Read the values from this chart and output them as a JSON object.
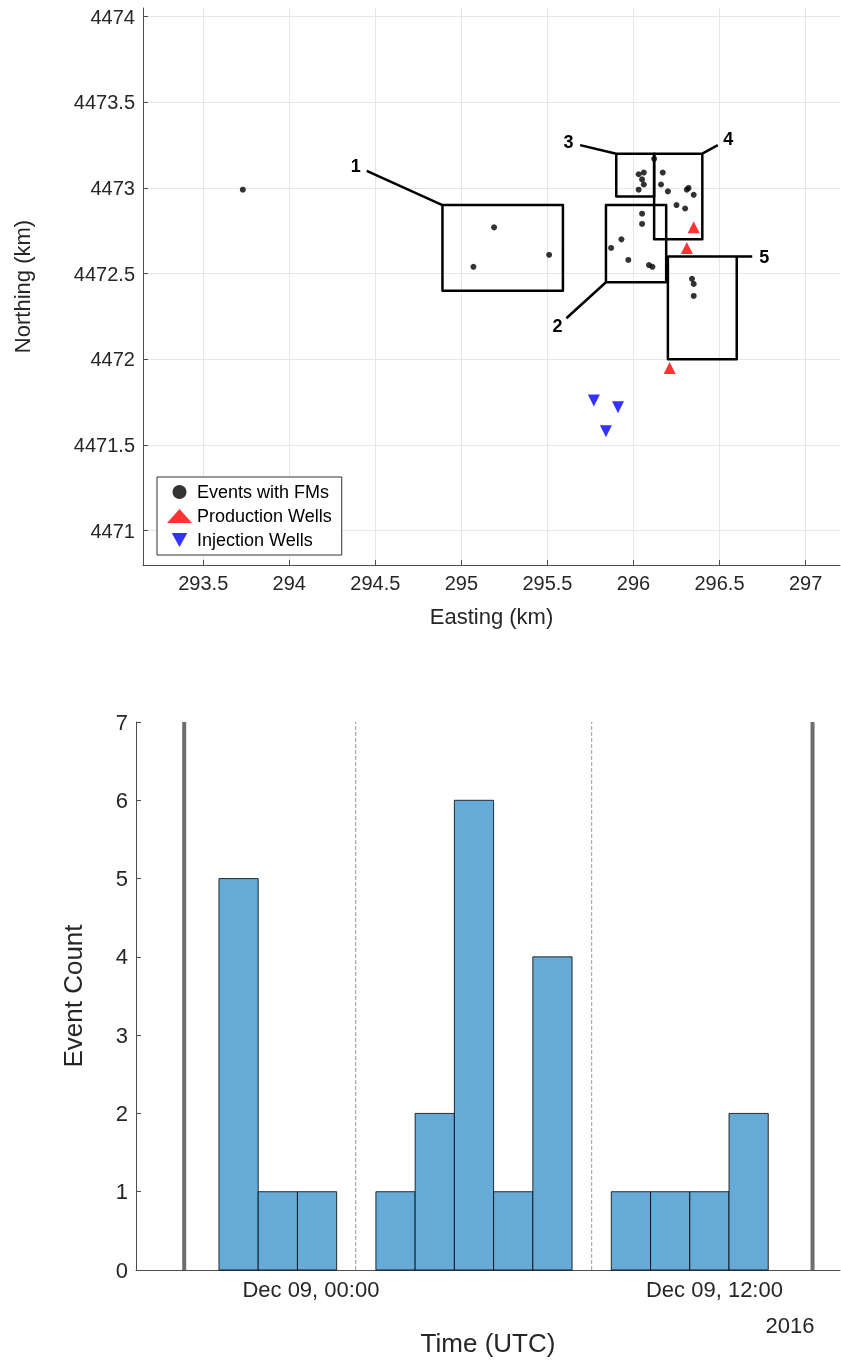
{
  "chart_data": [
    {
      "type": "scatter",
      "xlabel": "Easting (km)",
      "ylabel": "Northing (km)",
      "xlim": [
        293.15,
        297.2
      ],
      "xticks": [
        293.5,
        294,
        294.5,
        295,
        295.5,
        296,
        296.5,
        297
      ],
      "ylim": [
        4470.8,
        4474.05
      ],
      "yticks": [
        4471,
        4471.5,
        4472,
        4472.5,
        4473,
        4473.5,
        4474
      ],
      "grid": true,
      "legend": "bottom left",
      "series": [
        {
          "name": "Events with FMs",
          "color": "#000000",
          "marker": "circle",
          "x": [
            293.73,
            295.07,
            295.19,
            295.51,
            296.12,
            296.17,
            296.16,
            296.2,
            296.31,
            296.32,
            296.35,
            296.25,
            296.3,
            296.03,
            296.06,
            296.05,
            296.06,
            296.03,
            296.05,
            296.05,
            295.93,
            295.87,
            295.97,
            296.09,
            296.11,
            296.34,
            296.35,
            296.35
          ],
          "values": [
            4472.99,
            4472.54,
            4472.77,
            4472.61,
            4473.17,
            4473.09,
            4473.02,
            4472.98,
            4472.99,
            4473.0,
            4472.96,
            4472.9,
            4472.88,
            4473.08,
            4473.09,
            4473.05,
            4473.02,
            4472.99,
            4472.85,
            4472.79,
            4472.7,
            4472.65,
            4472.58,
            4472.55,
            4472.54,
            4472.47,
            4472.44,
            4472.37
          ]
        },
        {
          "name": "Production Wells",
          "color": "#ff0000",
          "marker": "triangle",
          "x": [
            296.35,
            296.31,
            296.21
          ],
          "values": [
            4472.77,
            4472.65,
            4471.95
          ]
        },
        {
          "name": "Injection Wells",
          "color": "#0000ff",
          "marker": "triangle_down",
          "x": [
            295.77,
            295.91,
            295.84
          ],
          "values": [
            4471.76,
            4471.72,
            4471.58
          ]
        },
        {
          "type": "line",
          "color": "#000000",
          "marker": "none",
          "x": [
            294.45,
            294.89,
            295.59,
            295.59,
            294.89,
            294.89
          ],
          "values": [
            4473.1,
            4472.9,
            4472.9,
            4472.4,
            4472.4,
            4472.9
          ]
        },
        {
          "type": "line",
          "color": "#000000",
          "marker": "none",
          "x": [
            295.61,
            295.84,
            295.84,
            296.19,
            296.19,
            295.84
          ],
          "values": [
            4472.24,
            4472.45,
            4472.9,
            4472.9,
            4472.45,
            4472.45
          ]
        },
        {
          "type": "line",
          "color": "#000000",
          "marker": "none",
          "x": [
            295.69,
            295.9,
            296.12,
            296.12,
            295.9,
            295.9
          ],
          "values": [
            4473.25,
            4473.2,
            4473.2,
            4472.95,
            4472.95,
            4473.2
          ]
        },
        {
          "type": "line",
          "color": "#000000",
          "marker": "none",
          "x": [
            296.49,
            296.4,
            296.4,
            296.12,
            296.12,
            296.4
          ],
          "values": [
            4473.25,
            4473.2,
            4472.7,
            4472.7,
            4473.2,
            4473.2
          ]
        },
        {
          "type": "line",
          "color": "#000000",
          "marker": "none",
          "x": [
            296.69,
            296.6,
            296.6,
            296.2,
            296.2,
            296.6
          ],
          "values": [
            4472.6,
            4472.6,
            4472.0,
            4472.0,
            4472.6,
            4472.6
          ]
        }
      ],
      "annotations": [
        {
          "text": "1",
          "x": 294.45,
          "y": 4473.1
        },
        {
          "text": "2",
          "x": 295.61,
          "y": 4472.24
        },
        {
          "text": "3",
          "x": 295.69,
          "y": 4473.25
        },
        {
          "text": "4",
          "x": 296.49,
          "y": 4473.25
        },
        {
          "text": "5",
          "x": 296.69,
          "y": 4472.6
        }
      ]
    },
    {
      "type": "histogram",
      "xlabel": "Time (UTC)",
      "ylabel": "Event Count",
      "color": "#66aad7",
      "bins": [
        "2016-12-08T21:16",
        "2016-12-08T22:26",
        "2016-12-08T23:36",
        "2016-12-09T00:46",
        "2016-12-09T01:56",
        "2016-12-09T03:06",
        "2016-12-09T04:16",
        "2016-12-09T05:26",
        "2016-12-09T06:36",
        "2016-12-09T07:46",
        "2016-12-09T08:56",
        "2016-12-09T10:06",
        "2016-12-09T11:16",
        "2016-12-09T12:26",
        "2016-12-09T13:36"
      ],
      "values": [
        5,
        1,
        1,
        0,
        1,
        2,
        6,
        1,
        4,
        0,
        1,
        1,
        1,
        2
      ],
      "xlim": [
        "2016-12-08T18:48",
        "2016-12-09T15:44"
      ],
      "xticks": [
        {
          "value": "2016-12-09T00:00",
          "label": "Dec 09, 00:00"
        },
        {
          "value": "2016-12-09T12:00",
          "label": "Dec 09, 12:00"
        }
      ],
      "ylim": [
        0,
        7
      ],
      "yticks": [
        0,
        1,
        2,
        3,
        4,
        5,
        6,
        7
      ],
      "grid": false,
      "ref_lines": [
        {
          "axis": "x",
          "value": "2016-12-08T20:14",
          "color": "#6e6e6e",
          "line_style": "solid"
        },
        {
          "axis": "x",
          "value": "2016-12-09T01:20",
          "color": "#999999",
          "line_style": "dashed"
        },
        {
          "axis": "x",
          "value": "2016-12-09T08:21",
          "color": "#999999",
          "line_style": "dashed"
        },
        {
          "axis": "x",
          "value": "2016-12-09T14:55",
          "color": "#6e6e6e",
          "line_style": "solid"
        }
      ],
      "annotations": [
        "2016"
      ]
    }
  ]
}
